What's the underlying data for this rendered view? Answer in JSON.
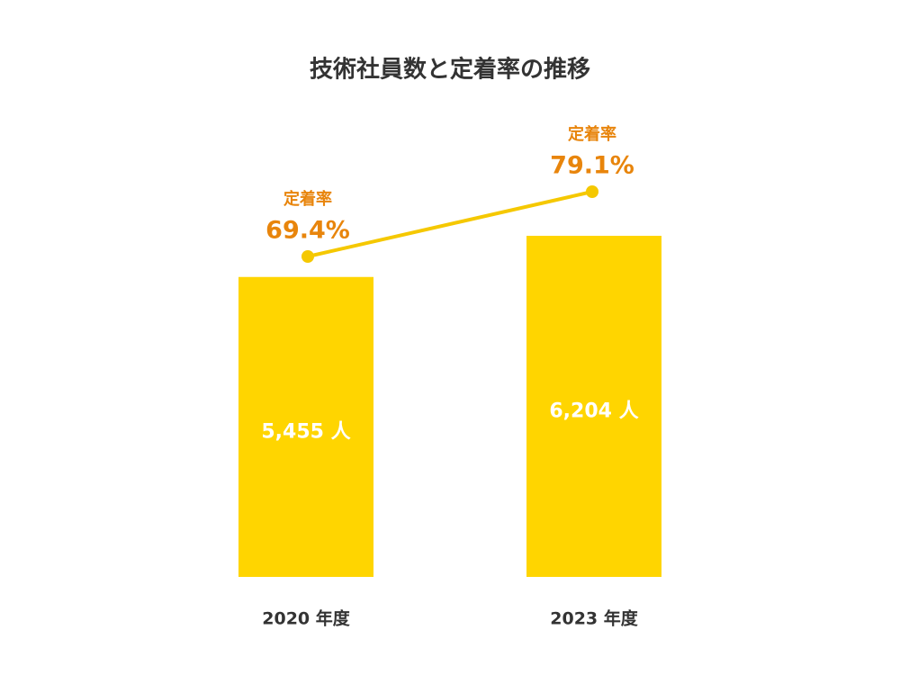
{
  "chart_data": {
    "type": "bar_line",
    "title": "技術社員数と定着率の推移",
    "categories": [
      "2020 年度",
      "2023 年度"
    ],
    "values": [
      5455,
      6204
    ],
    "value_labels": [
      "5,455 人",
      "6,204 人"
    ],
    "color": "#ffd500",
    "line": {
      "label": "定着率",
      "values": [
        69.4,
        79.1
      ],
      "value_labels": [
        "69.4%",
        "79.1%"
      ],
      "color": "#f5c800",
      "label_color": "#e8850c"
    }
  }
}
